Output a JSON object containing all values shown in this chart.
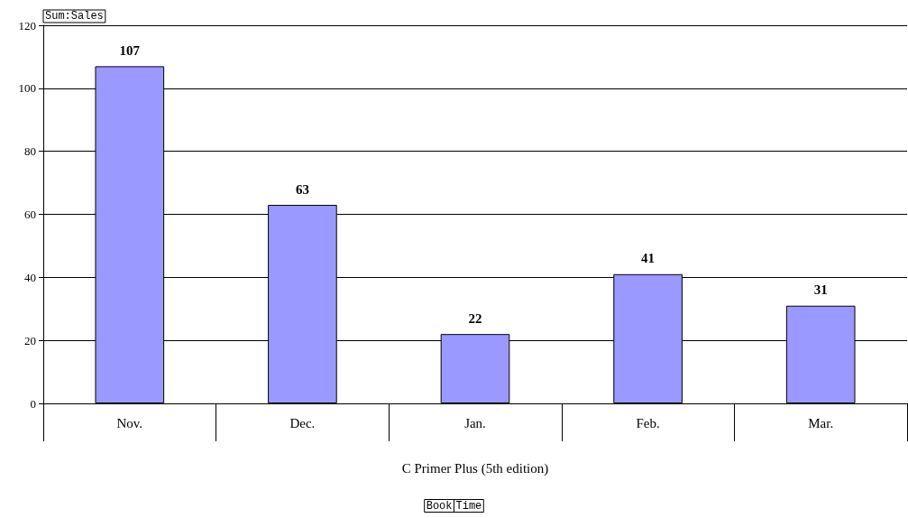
{
  "chart_data": {
    "type": "bar",
    "ylabel": "Sum:Sales",
    "xlabel": "C Primer Plus (5th edition)",
    "categories": [
      "Nov.",
      "Dec.",
      "Jan.",
      "Feb.",
      "Mar."
    ],
    "values": [
      107,
      63,
      22,
      41,
      31
    ],
    "color": "#9999ff",
    "ylim": [
      0,
      120
    ],
    "yticks": [
      0,
      20,
      40,
      60,
      80,
      100,
      120
    ],
    "grid": "y",
    "data_labels": true,
    "annotations": [
      "Book",
      "Time"
    ]
  }
}
